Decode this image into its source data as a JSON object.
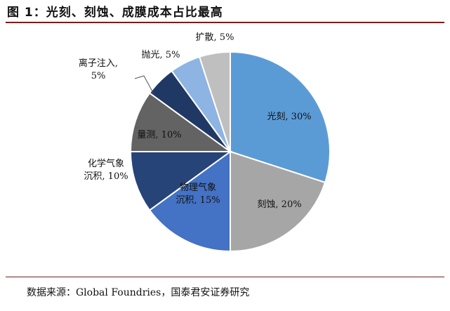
{
  "figure": {
    "title": "图 1：光刻、刻蚀、成膜成本占比最高",
    "source": "数据来源：Global Foundries，国泰君安证券研究"
  },
  "chart_data": {
    "type": "pie",
    "title": "图 1：光刻、刻蚀、成膜成本占比最高",
    "start": "top, clockwise",
    "slices": [
      {
        "label": "光刻",
        "value": 30,
        "display": "光刻, 30%",
        "color": "#5b9bd5"
      },
      {
        "label": "刻蚀",
        "value": 20,
        "display": "刻蚀, 20%",
        "color": "#a6a6a6"
      },
      {
        "label": "物理气象沉积",
        "value": 15,
        "display": "物理气象\n沉积, 15%",
        "color": "#4472c4"
      },
      {
        "label": "化学气象沉积",
        "value": 10,
        "display": "化学气象\n沉积, 10%",
        "color": "#264478"
      },
      {
        "label": "量测",
        "value": 10,
        "display": "量测, 10%",
        "color": "#636363"
      },
      {
        "label": "离子注入",
        "value": 5,
        "display": "离子注入,\n5%",
        "color": "#203864"
      },
      {
        "label": "抛光",
        "value": 5,
        "display": "抛光, 5%",
        "color": "#8db4e2"
      },
      {
        "label": "扩散",
        "value": 5,
        "display": "扩散, 5%",
        "color": "#bfbfbf"
      }
    ]
  }
}
